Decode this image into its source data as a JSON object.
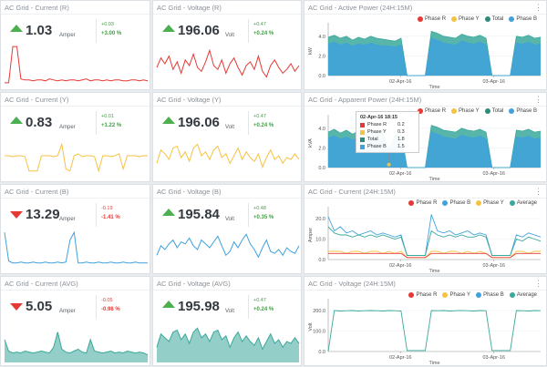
{
  "colors": {
    "red": "#e53935",
    "yellow": "#f5c342",
    "blue": "#3fa2dc",
    "teal": "#3aa89a",
    "green": "#43a047"
  },
  "kpis": [
    {
      "title": "AC Grid - Current (R)",
      "value": "1.03",
      "unit": "Amper",
      "delta": "+0.03",
      "pct": "+3.00 %",
      "trend": "up",
      "color": "#e53935",
      "fill": false,
      "series": [
        2,
        2,
        40,
        40,
        6,
        5,
        5,
        4,
        5,
        5,
        4,
        6,
        5,
        4,
        5,
        4,
        5,
        5,
        4,
        5,
        6,
        4,
        5,
        5,
        4,
        5,
        4,
        5,
        5,
        4,
        4,
        5,
        5,
        4,
        5,
        4
      ]
    },
    {
      "title": "AC Grid - Voltage (R)",
      "value": "196.06",
      "unit": "Volt",
      "delta": "+0.47",
      "pct": "+0.24 %",
      "trend": "up",
      "color": "#e53935",
      "fill": false,
      "series": [
        18,
        28,
        22,
        30,
        16,
        24,
        12,
        26,
        20,
        32,
        18,
        14,
        24,
        36,
        20,
        16,
        26,
        12,
        22,
        28,
        18,
        10,
        20,
        24,
        16,
        30,
        14,
        8,
        20,
        26,
        18,
        12,
        16,
        22,
        14,
        20
      ]
    },
    {
      "title": "AC Grid - Current (Y)",
      "value": "0.83",
      "unit": "Amper",
      "delta": "+0.01",
      "pct": "+1.22 %",
      "trend": "up",
      "color": "#f5c342",
      "fill": false,
      "series": [
        22,
        22,
        21,
        22,
        22,
        21,
        6,
        6,
        6,
        22,
        22,
        22,
        21,
        22,
        34,
        8,
        6,
        22,
        24,
        21,
        22,
        22,
        21,
        6,
        22,
        22,
        21,
        22,
        24,
        8,
        22,
        22,
        22,
        21,
        22,
        22
      ]
    },
    {
      "title": "AC Grid - Voltage (Y)",
      "value": "196.06",
      "unit": "Volt",
      "delta": "+0.47",
      "pct": "+0.24 %",
      "trend": "up",
      "color": "#f5c342",
      "fill": false,
      "series": [
        14,
        28,
        24,
        18,
        30,
        32,
        20,
        26,
        16,
        30,
        34,
        22,
        26,
        18,
        28,
        32,
        20,
        24,
        14,
        22,
        30,
        18,
        26,
        20,
        16,
        24,
        10,
        20,
        28,
        18,
        22,
        14,
        20,
        18,
        24,
        18
      ]
    },
    {
      "title": "AC Grid - Current (B)",
      "value": "13.29",
      "unit": "Amper",
      "delta": "-0.19",
      "pct": "-1.41 %",
      "trend": "down",
      "color": "#3fa2dc",
      "fill": false,
      "series": [
        38,
        8,
        6,
        6,
        7,
        6,
        6,
        7,
        6,
        6,
        7,
        6,
        6,
        7,
        6,
        7,
        30,
        38,
        6,
        6,
        7,
        6,
        6,
        7,
        6,
        6,
        7,
        6,
        6,
        7,
        6,
        6,
        7,
        6,
        6,
        6
      ]
    },
    {
      "title": "AC Grid - Voltage (B)",
      "value": "195.84",
      "unit": "Volt",
      "delta": "+0.48",
      "pct": "+0.35 %",
      "trend": "up",
      "color": "#3fa2dc",
      "fill": false,
      "series": [
        14,
        24,
        20,
        26,
        30,
        22,
        28,
        26,
        32,
        24,
        20,
        30,
        26,
        22,
        28,
        34,
        24,
        14,
        18,
        28,
        22,
        30,
        36,
        26,
        20,
        12,
        22,
        30,
        18,
        16,
        20,
        14,
        22,
        18,
        16,
        24
      ]
    },
    {
      "title": "AC Grid - Current (AVG)",
      "value": "5.05",
      "unit": "Amper",
      "delta": "-0.05",
      "pct": "-0.98 %",
      "trend": "down",
      "color": "#3aa89a",
      "fill": true,
      "series": [
        22,
        10,
        8,
        9,
        8,
        10,
        9,
        8,
        9,
        10,
        9,
        8,
        14,
        30,
        12,
        9,
        8,
        10,
        12,
        9,
        8,
        22,
        10,
        9,
        8,
        9,
        10,
        8,
        9,
        8,
        10,
        9,
        8,
        9,
        8,
        6
      ]
    },
    {
      "title": "AC Grid - Voltage (AVG)",
      "value": "195.98",
      "unit": "Volt",
      "delta": "+0.47",
      "pct": "+0.24 %",
      "trend": "up",
      "color": "#3aa89a",
      "fill": true,
      "series": [
        14,
        28,
        24,
        20,
        30,
        32,
        22,
        28,
        18,
        30,
        34,
        24,
        28,
        20,
        30,
        32,
        22,
        26,
        14,
        24,
        30,
        20,
        26,
        20,
        16,
        24,
        12,
        20,
        28,
        18,
        22,
        14,
        20,
        18,
        24,
        18
      ]
    }
  ],
  "charts": [
    {
      "title": "AC Grid - Active Power (24H:15M)",
      "type": "area",
      "ylabel": "kW",
      "xlabel": "Time",
      "yticks": [
        "0.0",
        "2.0",
        "4.0"
      ],
      "ymax": 5,
      "xticks": [
        "02-Apr-16",
        "03-Apr-16"
      ],
      "legend": [
        {
          "name": "Phase R",
          "color": "#e53935"
        },
        {
          "name": "Phase Y",
          "color": "#f5c342"
        },
        {
          "name": "Total",
          "color": "#2e8b7a"
        },
        {
          "name": "Phase B",
          "color": "#3fa2dc"
        }
      ],
      "series": [
        {
          "name": "Total",
          "color": "#3aa89a",
          "values": [
            3.9,
            4.1,
            3.8,
            4.0,
            3.6,
            3.9,
            3.7,
            4.0,
            3.8,
            3.7,
            3.6,
            3.5,
            3.8,
            0,
            0,
            0,
            0,
            4.5,
            4.3,
            4.0,
            3.9,
            3.8,
            4.2,
            4.0,
            3.9,
            4.1,
            3.8,
            0,
            0,
            0,
            0,
            4.0,
            3.9,
            4.1,
            3.8,
            3.9
          ]
        },
        {
          "name": "Phase B",
          "color": "#3fa2dc",
          "values": [
            3.2,
            3.4,
            3.1,
            3.3,
            3.0,
            3.2,
            3.1,
            3.3,
            3.1,
            3.0,
            3.0,
            2.9,
            3.1,
            0,
            0,
            0,
            0,
            3.8,
            3.6,
            3.3,
            3.2,
            3.1,
            3.5,
            3.3,
            3.2,
            3.4,
            3.1,
            0,
            0,
            0,
            0,
            3.3,
            3.2,
            3.4,
            3.1,
            3.2
          ]
        }
      ]
    },
    {
      "title": "AC Grid - Apparent Power (24H:15M)",
      "type": "area",
      "ylabel": "kVA",
      "xlabel": "Time",
      "yticks": [
        "0.0",
        "2.0",
        "4.0"
      ],
      "ymax": 5,
      "xticks": [
        "02-Apr-16",
        "03-Apr-16"
      ],
      "legend": [
        {
          "name": "Phase R",
          "color": "#e53935"
        },
        {
          "name": "Phase Y",
          "color": "#f5c342"
        },
        {
          "name": "Total",
          "color": "#2e8b7a"
        },
        {
          "name": "Phase B",
          "color": "#3fa2dc"
        }
      ],
      "tooltip": {
        "time": "02-Apr-16 18:15",
        "rows": [
          {
            "name": "Phase R",
            "value": "0.2",
            "color": "#e53935"
          },
          {
            "name": "Phase Y",
            "value": "0.3",
            "color": "#f5c342"
          },
          {
            "name": "Total",
            "value": "1.8",
            "color": "#2e8b7a"
          },
          {
            "name": "Phase B",
            "value": "1.5",
            "color": "#3fa2dc"
          }
        ]
      },
      "series": [
        {
          "name": "Total",
          "color": "#3aa89a",
          "values": [
            3.6,
            3.9,
            3.5,
            3.8,
            3.4,
            3.7,
            3.5,
            3.8,
            3.6,
            3.5,
            1.8,
            3.3,
            3.6,
            0,
            0,
            0,
            0,
            4.3,
            4.1,
            3.8,
            3.7,
            3.6,
            4.0,
            3.8,
            3.7,
            3.9,
            3.6,
            0,
            0,
            0,
            0,
            3.8,
            3.7,
            3.9,
            3.6,
            3.7
          ]
        },
        {
          "name": "Phase B",
          "color": "#3fa2dc",
          "values": [
            3.0,
            3.2,
            2.9,
            3.1,
            2.8,
            3.0,
            2.9,
            3.1,
            2.9,
            2.8,
            1.5,
            2.7,
            2.9,
            0,
            0,
            0,
            0,
            3.6,
            3.4,
            3.1,
            3.0,
            2.9,
            3.3,
            3.1,
            3.0,
            3.2,
            2.9,
            0,
            0,
            0,
            0,
            3.1,
            3.0,
            3.2,
            2.9,
            3.0
          ]
        }
      ]
    },
    {
      "title": "AC Grid - Current (24H:15M)",
      "type": "line",
      "ylabel": "Amper",
      "xlabel": "Time",
      "yticks": [
        "0.0",
        "10.0",
        "20.0"
      ],
      "ymax": 24,
      "xticks": [
        "02-Apr-16",
        "03-Apr-16"
      ],
      "legend": [
        {
          "name": "Phase R",
          "color": "#e53935"
        },
        {
          "name": "Phase B",
          "color": "#3fa2dc"
        },
        {
          "name": "Phase Y",
          "color": "#f5c342"
        },
        {
          "name": "Average",
          "color": "#3aa89a"
        }
      ],
      "series": [
        {
          "name": "Phase B",
          "color": "#3fa2dc",
          "values": [
            21,
            14,
            16,
            13,
            14,
            12,
            13,
            14,
            12,
            13,
            12,
            11,
            12,
            2,
            2,
            2,
            2,
            22,
            14,
            13,
            14,
            12,
            13,
            14,
            12,
            13,
            12,
            2,
            2,
            2,
            2,
            12,
            11,
            13,
            12,
            11
          ]
        },
        {
          "name": "Average",
          "color": "#3aa89a",
          "values": [
            16,
            13,
            12,
            12,
            11,
            12,
            11,
            12,
            11,
            12,
            11,
            10,
            11,
            2,
            2,
            2,
            2,
            14,
            12,
            11,
            12,
            11,
            12,
            11,
            11,
            12,
            11,
            2,
            2,
            2,
            2,
            10,
            9,
            11,
            10,
            9
          ]
        },
        {
          "name": "Phase Y",
          "color": "#f5c342",
          "values": [
            4,
            4,
            4,
            3,
            4,
            4,
            3,
            4,
            4,
            3,
            4,
            3,
            4,
            1,
            1,
            1,
            1,
            4,
            4,
            3,
            4,
            4,
            3,
            4,
            3,
            4,
            3,
            1,
            1,
            1,
            1,
            4,
            4,
            3,
            4,
            4
          ]
        },
        {
          "name": "Phase R",
          "color": "#e53935",
          "values": [
            3,
            3,
            3,
            3,
            3,
            3,
            3,
            3,
            3,
            3,
            3,
            3,
            3,
            1,
            1,
            1,
            1,
            3,
            3,
            3,
            3,
            3,
            3,
            3,
            3,
            3,
            3,
            1,
            1,
            1,
            1,
            3,
            3,
            3,
            3,
            3
          ]
        }
      ]
    },
    {
      "title": "AC Grid - Voltage (24H:15M)",
      "type": "line",
      "ylabel": "Volt",
      "xlabel": "Time",
      "yticks": [
        "0.0",
        "100.0",
        "200.0"
      ],
      "ymax": 240,
      "xticks": [
        "02-Apr-16",
        "03-Apr-16"
      ],
      "legend": [
        {
          "name": "Phase R",
          "color": "#e53935"
        },
        {
          "name": "Phase Y",
          "color": "#f5c342"
        },
        {
          "name": "Phase B",
          "color": "#3fa2dc"
        },
        {
          "name": "Average",
          "color": "#3aa89a"
        }
      ],
      "series": [
        {
          "name": "Average",
          "color": "#3aa89a",
          "values": [
            0,
            200,
            198,
            199,
            200,
            198,
            199,
            200,
            199,
            198,
            200,
            199,
            198,
            5,
            5,
            5,
            5,
            200,
            199,
            200,
            198,
            199,
            200,
            199,
            198,
            200,
            199,
            5,
            5,
            5,
            5,
            200,
            199,
            198,
            200,
            199
          ]
        }
      ]
    }
  ]
}
